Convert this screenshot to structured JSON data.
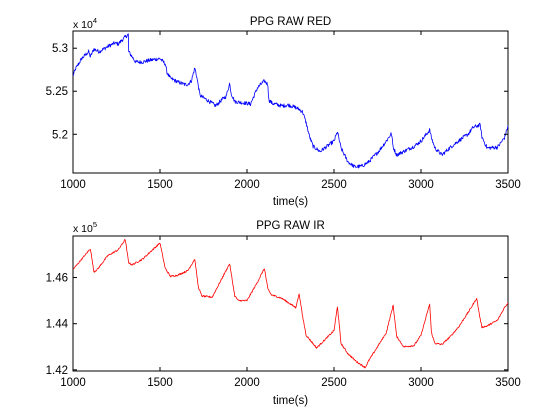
{
  "chart_data": [
    {
      "type": "line",
      "title": "PPG RAW RED",
      "xlabel": "time(s)",
      "ylabel": "",
      "xlim": [
        1000,
        3500
      ],
      "ylim": [
        51550,
        53200
      ],
      "x_ticks": [
        1000,
        1500,
        2000,
        2500,
        3000,
        3500
      ],
      "x_tick_labels": [
        "1000",
        "1500",
        "2000",
        "2500",
        "3000",
        "3500"
      ],
      "y_ticks": [
        52000,
        52500,
        53000
      ],
      "y_tick_labels": [
        "5.2",
        "5.25",
        "5.3"
      ],
      "y_exponent": {
        "base": "x 10",
        "power": "4"
      },
      "grid": false,
      "legend": "none",
      "series": [
        {
          "color": "#0000ff",
          "noise": 22,
          "x": [
            1000,
            1015,
            1050,
            1090,
            1100,
            1120,
            1150,
            1200,
            1240,
            1260,
            1300,
            1318,
            1320,
            1360,
            1400,
            1440,
            1500,
            1530,
            1540,
            1560,
            1600,
            1640,
            1660,
            1680,
            1700,
            1710,
            1730,
            1800,
            1820,
            1860,
            1880,
            1900,
            1910,
            1930,
            2000,
            2020,
            2060,
            2100,
            2120,
            2125,
            2145,
            2200,
            2240,
            2280,
            2300,
            2320,
            2340,
            2360,
            2380,
            2420,
            2500,
            2520,
            2540,
            2580,
            2620,
            2660,
            2700,
            2760,
            2800,
            2830,
            2840,
            2860,
            2900,
            2960,
            3000,
            3050,
            3060,
            3080,
            3120,
            3170,
            3220,
            3270,
            3300,
            3340,
            3350,
            3380,
            3440,
            3480,
            3500
          ],
          "y": [
            52680,
            52760,
            52880,
            52960,
            52900,
            52990,
            52960,
            53020,
            53060,
            53050,
            53130,
            53160,
            52960,
            52840,
            52840,
            52860,
            52880,
            52820,
            52720,
            52650,
            52610,
            52580,
            52580,
            52620,
            52770,
            52680,
            52450,
            52360,
            52330,
            52410,
            52440,
            52590,
            52470,
            52380,
            52360,
            52350,
            52540,
            52620,
            52580,
            52400,
            52360,
            52330,
            52340,
            52310,
            52290,
            52260,
            52130,
            51970,
            51860,
            51800,
            51920,
            52030,
            51840,
            51680,
            51620,
            51630,
            51680,
            51810,
            51920,
            52010,
            51850,
            51760,
            51800,
            51860,
            51920,
            52050,
            51960,
            51840,
            51760,
            51850,
            51930,
            52000,
            52080,
            52110,
            51970,
            51840,
            51850,
            51960,
            52100
          ]
        }
      ]
    },
    {
      "type": "line",
      "title": "PPG RAW IR",
      "xlabel": "time(s)",
      "ylabel": "",
      "xlim": [
        1000,
        3500
      ],
      "ylim": [
        141950,
        147800
      ],
      "x_ticks": [
        1000,
        1500,
        2000,
        2500,
        3000,
        3500
      ],
      "x_tick_labels": [
        "1000",
        "1500",
        "2000",
        "2500",
        "3000",
        "3500"
      ],
      "y_ticks": [
        142000,
        144000,
        146000
      ],
      "y_tick_labels": [
        "1.42",
        "1.44",
        "1.46"
      ],
      "y_exponent": {
        "base": "x 10",
        "power": "5"
      },
      "grid": false,
      "legend": "none",
      "series": [
        {
          "color": "#ff0000",
          "noise": 35,
          "x": [
            1000,
            1050,
            1100,
            1120,
            1140,
            1200,
            1260,
            1300,
            1320,
            1340,
            1400,
            1500,
            1530,
            1560,
            1600,
            1660,
            1700,
            1720,
            1740,
            1800,
            1900,
            1930,
            1950,
            2000,
            2060,
            2100,
            2120,
            2140,
            2200,
            2280,
            2300,
            2320,
            2340,
            2400,
            2500,
            2520,
            2540,
            2580,
            2630,
            2680,
            2700,
            2800,
            2840,
            2860,
            2900,
            2960,
            3000,
            3050,
            3060,
            3080,
            3120,
            3170,
            3220,
            3280,
            3320,
            3340,
            3350,
            3380,
            3440,
            3480,
            3500
          ],
          "y": [
            146350,
            146800,
            147250,
            146250,
            146350,
            146950,
            147200,
            147650,
            146650,
            146550,
            146800,
            147500,
            146400,
            146050,
            146100,
            146300,
            146800,
            145600,
            145200,
            145150,
            146600,
            145200,
            145000,
            145000,
            145800,
            146400,
            145500,
            145250,
            145100,
            144700,
            145300,
            144300,
            143500,
            142950,
            143700,
            144750,
            143150,
            142700,
            142350,
            142100,
            142400,
            143600,
            144800,
            143450,
            143000,
            143050,
            143500,
            144850,
            143600,
            143150,
            143100,
            143450,
            143900,
            144600,
            145100,
            144200,
            143850,
            143900,
            144150,
            144700,
            144900
          ]
        }
      ]
    }
  ]
}
